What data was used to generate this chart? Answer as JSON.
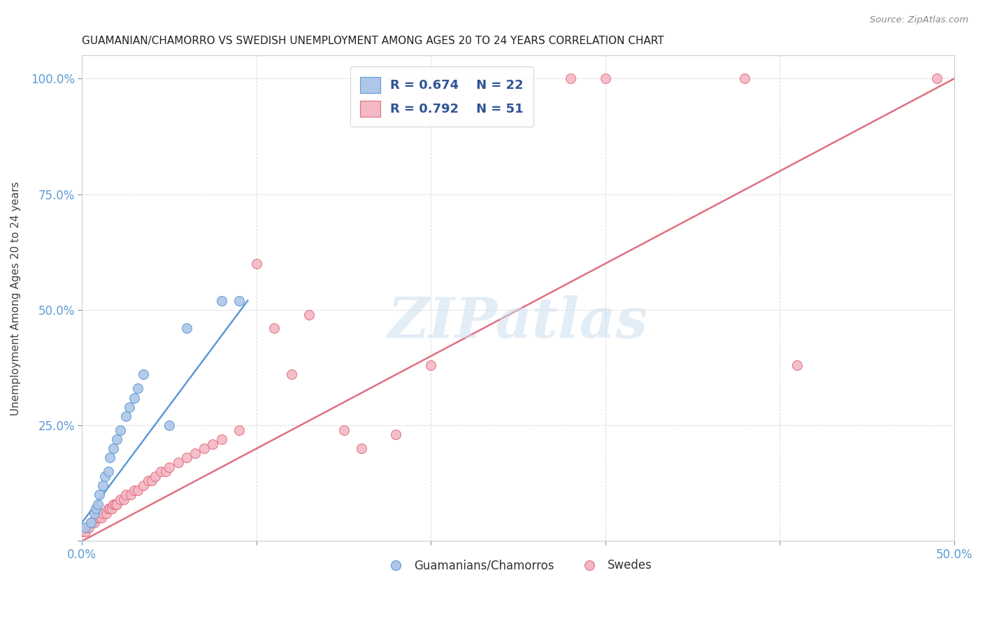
{
  "title": "GUAMANIAN/CHAMORRO VS SWEDISH UNEMPLOYMENT AMONG AGES 20 TO 24 YEARS CORRELATION CHART",
  "source": "Source: ZipAtlas.com",
  "ylabel": "Unemployment Among Ages 20 to 24 years",
  "x_min": 0.0,
  "x_max": 0.5,
  "y_min": 0.0,
  "y_max": 1.05,
  "x_ticks": [
    0.0,
    0.1,
    0.2,
    0.3,
    0.4,
    0.5
  ],
  "x_tick_labels": [
    "0.0%",
    "",
    "",
    "",
    "",
    "50.0%"
  ],
  "y_ticks": [
    0.0,
    0.25,
    0.5,
    0.75,
    1.0
  ],
  "y_tick_labels": [
    "",
    "25.0%",
    "50.0%",
    "75.0%",
    "100.0%"
  ],
  "guamanian_color": "#aec6e8",
  "guamanian_edge_color": "#5b9bd5",
  "swedish_color": "#f4b8c4",
  "swedish_edge_color": "#e07080",
  "legend_R_guamanian": "0.674",
  "legend_N_guamanian": "22",
  "legend_R_swedish": "0.792",
  "legend_N_swedish": "51",
  "legend_text_color": "#2f5496",
  "watermark": "ZIPatlas",
  "guamanian_x": [
    0.002,
    0.005,
    0.007,
    0.008,
    0.009,
    0.01,
    0.012,
    0.013,
    0.015,
    0.016,
    0.018,
    0.02,
    0.022,
    0.025,
    0.027,
    0.03,
    0.032,
    0.035,
    0.05,
    0.06,
    0.08,
    0.09
  ],
  "guamanian_y": [
    0.03,
    0.04,
    0.06,
    0.07,
    0.08,
    0.1,
    0.12,
    0.14,
    0.15,
    0.18,
    0.2,
    0.22,
    0.24,
    0.27,
    0.29,
    0.31,
    0.33,
    0.36,
    0.25,
    0.46,
    0.52,
    0.52
  ],
  "swedish_x": [
    0.0,
    0.002,
    0.003,
    0.004,
    0.005,
    0.006,
    0.007,
    0.008,
    0.01,
    0.011,
    0.012,
    0.014,
    0.015,
    0.016,
    0.017,
    0.018,
    0.019,
    0.02,
    0.022,
    0.024,
    0.025,
    0.028,
    0.03,
    0.032,
    0.035,
    0.038,
    0.04,
    0.042,
    0.045,
    0.048,
    0.05,
    0.055,
    0.06,
    0.065,
    0.07,
    0.075,
    0.08,
    0.09,
    0.1,
    0.11,
    0.12,
    0.13,
    0.15,
    0.16,
    0.18,
    0.2,
    0.28,
    0.3,
    0.38,
    0.41,
    0.49
  ],
  "swedish_y": [
    0.02,
    0.02,
    0.03,
    0.03,
    0.04,
    0.04,
    0.04,
    0.05,
    0.05,
    0.05,
    0.06,
    0.06,
    0.07,
    0.07,
    0.07,
    0.08,
    0.08,
    0.08,
    0.09,
    0.09,
    0.1,
    0.1,
    0.11,
    0.11,
    0.12,
    0.13,
    0.13,
    0.14,
    0.15,
    0.15,
    0.16,
    0.17,
    0.18,
    0.19,
    0.2,
    0.21,
    0.22,
    0.24,
    0.6,
    0.46,
    0.36,
    0.49,
    0.24,
    0.2,
    0.23,
    0.38,
    1.0,
    1.0,
    1.0,
    0.38,
    1.0
  ],
  "guamanian_trend_x": [
    0.0,
    0.095
  ],
  "guamanian_trend_y": [
    0.04,
    0.52
  ],
  "swedish_trend_x": [
    -0.01,
    0.5
  ],
  "swedish_trend_y": [
    -0.02,
    1.0
  ],
  "dashed_line_x": [
    0.0,
    0.5
  ],
  "dashed_line_y": [
    0.0,
    1.0
  ],
  "background_color": "#ffffff",
  "grid_color": "#cccccc",
  "tick_color": "#5b9bd5"
}
